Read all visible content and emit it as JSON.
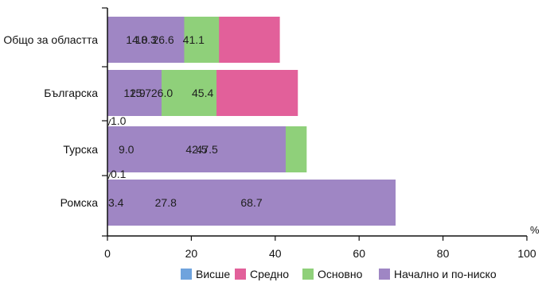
{
  "chart_data": {
    "type": "bar",
    "orientation": "horizontal",
    "stacked": true,
    "categories": [
      "Общо за областта",
      "Българска",
      "Турска",
      "Ромска"
    ],
    "series": [
      {
        "name": "Висше",
        "color": "#6fa3dd",
        "values": [
          14.0,
          15.7,
          1.0,
          0.1
        ]
      },
      {
        "name": "Средно",
        "color": "#e2609a",
        "values": [
          41.1,
          45.4,
          9.0,
          3.4
        ]
      },
      {
        "name": "Основно",
        "color": "#8fd07a",
        "values": [
          26.6,
          26.0,
          47.5,
          27.8
        ]
      },
      {
        "name": "Начално и по-ниско",
        "color": "#9f86c4",
        "values": [
          18.3,
          12.9,
          42.5,
          68.7
        ]
      }
    ],
    "data_labels": [
      [
        "14.0",
        "41.1",
        "26.6",
        "18.3"
      ],
      [
        "15.7",
        "45.4",
        "26.0",
        "12.9"
      ],
      [
        "1.0",
        "9.0",
        "47.5",
        "42.5"
      ],
      [
        "0.1",
        "3.4",
        "27.8",
        "68.7"
      ]
    ],
    "xlim": [
      0,
      100
    ],
    "xticks": [
      "0",
      "20",
      "40",
      "60",
      "80",
      "100"
    ],
    "x_unit": "%",
    "legend_position": "bottom",
    "grid": false
  }
}
